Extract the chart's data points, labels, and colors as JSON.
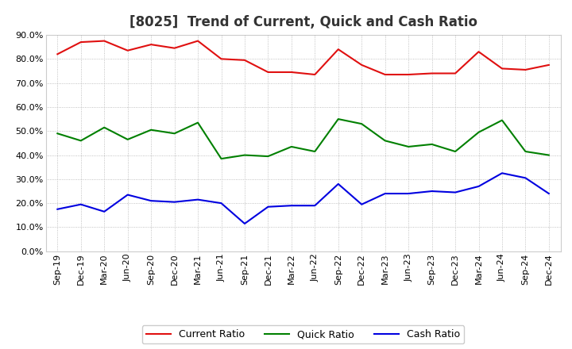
{
  "title": "[8025]  Trend of Current, Quick and Cash Ratio",
  "x_labels": [
    "Sep-19",
    "Dec-19",
    "Mar-20",
    "Jun-20",
    "Sep-20",
    "Dec-20",
    "Mar-21",
    "Jun-21",
    "Sep-21",
    "Dec-21",
    "Mar-22",
    "Jun-22",
    "Sep-22",
    "Dec-22",
    "Mar-23",
    "Jun-23",
    "Sep-23",
    "Dec-23",
    "Mar-24",
    "Jun-24",
    "Sep-24",
    "Dec-24"
  ],
  "current_ratio": [
    0.82,
    0.87,
    0.875,
    0.835,
    0.86,
    0.845,
    0.875,
    0.8,
    0.795,
    0.745,
    0.745,
    0.735,
    0.84,
    0.775,
    0.735,
    0.735,
    0.74,
    0.74,
    0.83,
    0.76,
    0.755,
    0.775
  ],
  "quick_ratio": [
    0.49,
    0.46,
    0.515,
    0.465,
    0.505,
    0.49,
    0.535,
    0.385,
    0.4,
    0.395,
    0.435,
    0.415,
    0.55,
    0.53,
    0.46,
    0.435,
    0.445,
    0.415,
    0.495,
    0.545,
    0.415,
    0.4
  ],
  "cash_ratio": [
    0.175,
    0.195,
    0.165,
    0.235,
    0.21,
    0.205,
    0.215,
    0.2,
    0.115,
    0.185,
    0.19,
    0.19,
    0.28,
    0.195,
    0.24,
    0.24,
    0.25,
    0.245,
    0.27,
    0.325,
    0.305,
    0.24
  ],
  "current_color": "#e01010",
  "quick_color": "#008000",
  "cash_color": "#0000e0",
  "bg_color": "#ffffff",
  "plot_bg_color": "#ffffff",
  "ylim": [
    0.0,
    0.9
  ],
  "yticks": [
    0.0,
    0.1,
    0.2,
    0.3,
    0.4,
    0.5,
    0.6,
    0.7,
    0.8,
    0.9
  ],
  "legend_labels": [
    "Current Ratio",
    "Quick Ratio",
    "Cash Ratio"
  ],
  "title_fontsize": 12,
  "axis_fontsize": 8,
  "legend_fontsize": 9,
  "line_width": 1.5
}
